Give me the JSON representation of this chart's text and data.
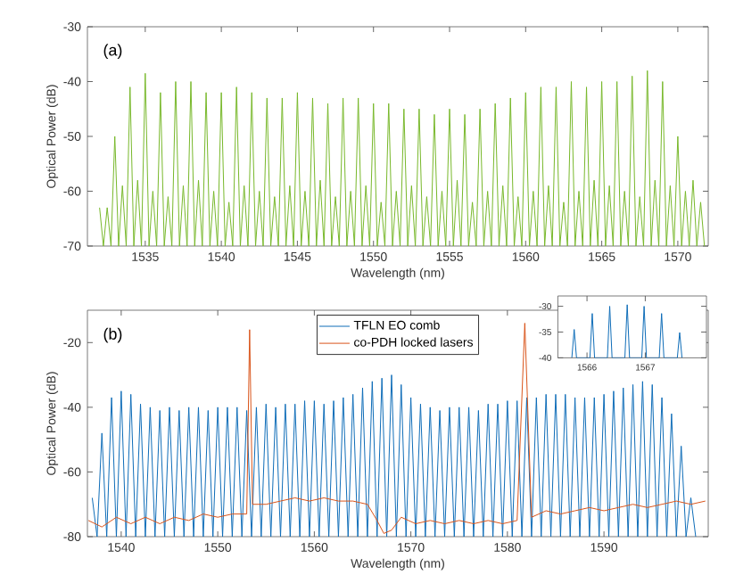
{
  "chart_data": [
    {
      "type": "line",
      "xlabel": "Wavelength (nm)",
      "ylabel": "Optical Power (dB)",
      "annotations": [
        "(a)"
      ],
      "xlim": [
        1531.2,
        1572
      ],
      "ylim": [
        -70,
        -30
      ],
      "xticks": [
        1535,
        1540,
        1545,
        1550,
        1555,
        1560,
        1565,
        1570
      ],
      "yticks": [
        -70,
        -60,
        -50,
        -40,
        -30
      ],
      "series": [
        {
          "color": "#77b82a",
          "x": [
            1532,
            1532.25,
            1532.5,
            1532.75,
            1533,
            1533.25,
            1533.5,
            1533.75,
            1534,
            1534.25,
            1534.5,
            1534.75,
            1535,
            1535.25,
            1535.5,
            1535.75,
            1536,
            1536.25,
            1536.5,
            1536.75,
            1537,
            1537.25,
            1537.5,
            1537.75,
            1538,
            1538.25,
            1538.5,
            1538.75,
            1539,
            1539.25,
            1539.5,
            1539.75,
            1540,
            1540.25,
            1540.5,
            1540.75,
            1541,
            1541.25,
            1541.5,
            1541.75,
            1542,
            1542.25,
            1542.5,
            1542.75,
            1543,
            1543.25,
            1543.5,
            1543.75,
            1544,
            1544.25,
            1544.5,
            1544.75,
            1545,
            1545.25,
            1545.5,
            1545.75,
            1546,
            1546.25,
            1546.5,
            1546.75,
            1547,
            1547.25,
            1547.5,
            1547.75,
            1548,
            1548.25,
            1548.5,
            1548.75,
            1549,
            1549.25,
            1549.5,
            1549.75,
            1550,
            1550.25,
            1550.5,
            1550.75,
            1551,
            1551.25,
            1551.5,
            1551.75,
            1552,
            1552.25,
            1552.5,
            1552.75,
            1553,
            1553.25,
            1553.5,
            1553.75,
            1554,
            1554.25,
            1554.5,
            1554.75,
            1555,
            1555.25,
            1555.5,
            1555.75,
            1556,
            1556.25,
            1556.5,
            1556.75,
            1557,
            1557.25,
            1557.5,
            1557.75,
            1558,
            1558.25,
            1558.5,
            1558.75,
            1559,
            1559.25,
            1559.5,
            1559.75,
            1560,
            1560.25,
            1560.5,
            1560.75,
            1561,
            1561.25,
            1561.5,
            1561.75,
            1562,
            1562.25,
            1562.5,
            1562.75,
            1563,
            1563.25,
            1563.5,
            1563.75,
            1564,
            1564.25,
            1564.5,
            1564.75,
            1565,
            1565.25,
            1565.5,
            1565.75,
            1566,
            1566.25,
            1566.5,
            1566.75,
            1567,
            1567.25,
            1567.5,
            1567.75,
            1568,
            1568.25,
            1568.5,
            1568.75,
            1569,
            1569.25,
            1569.5,
            1569.75,
            1570,
            1570.25,
            1570.5,
            1570.75,
            1571,
            1571.25,
            1571.5,
            1571.75
          ],
          "values": [
            -63,
            -70,
            -63,
            -70,
            -50,
            -70,
            -59,
            -70,
            -41,
            -70,
            -58,
            -70,
            -38.5,
            -70,
            -60,
            -70,
            -42,
            -70,
            -61,
            -70,
            -40,
            -70,
            -59,
            -70,
            -40,
            -70,
            -58,
            -70,
            -42,
            -70,
            -60,
            -70,
            -42,
            -70,
            -62,
            -70,
            -41,
            -70,
            -59,
            -70,
            -42,
            -70,
            -60,
            -70,
            -43,
            -70,
            -61,
            -70,
            -43,
            -70,
            -59,
            -70,
            -42,
            -70,
            -60,
            -70,
            -43,
            -70,
            -58,
            -70,
            -44,
            -70,
            -61,
            -70,
            -43,
            -70,
            -60,
            -70,
            -43,
            -70,
            -59,
            -70,
            -44,
            -70,
            -62,
            -70,
            -44,
            -70,
            -60,
            -70,
            -45,
            -70,
            -59,
            -70,
            -45,
            -70,
            -61,
            -70,
            -46,
            -70,
            -60,
            -70,
            -45,
            -70,
            -58,
            -70,
            -46,
            -70,
            -62,
            -70,
            -45,
            -70,
            -60,
            -70,
            -44,
            -70,
            -59,
            -70,
            -43,
            -70,
            -61,
            -70,
            -42,
            -70,
            -60,
            -70,
            -41,
            -70,
            -59,
            -70,
            -41,
            -70,
            -62,
            -70,
            -40,
            -70,
            -60,
            -70,
            -41,
            -70,
            -58,
            -70,
            -40,
            -70,
            -59,
            -70,
            -40,
            -70,
            -60,
            -70,
            -39,
            -70,
            -61,
            -70,
            -38,
            -70,
            -58,
            -70,
            -40,
            -70,
            -59,
            -70,
            -50,
            -70,
            -60,
            -70,
            -58,
            -70,
            -62,
            -70
          ]
        }
      ]
    },
    {
      "type": "line",
      "xlabel": "Wavelength (nm)",
      "ylabel": "Optical Power (dB)",
      "annotations": [
        "(b)"
      ],
      "xlim": [
        1536.5,
        1600.8
      ],
      "ylim": [
        -80,
        -10
      ],
      "xticks": [
        1540,
        1550,
        1560,
        1570,
        1580,
        1590
      ],
      "yticks": [
        -80,
        -60,
        -40,
        -20
      ],
      "legend": "top",
      "series": [
        {
          "name": "TFLN EO comb",
          "color": "#0e6cb8",
          "x": [
            1537,
            1537.5,
            1538,
            1538.5,
            1539,
            1539.5,
            1540,
            1540.5,
            1541,
            1541.5,
            1542,
            1542.5,
            1543,
            1543.5,
            1544,
            1544.5,
            1545,
            1545.5,
            1546,
            1546.5,
            1547,
            1547.5,
            1548,
            1548.5,
            1549,
            1549.5,
            1550,
            1550.5,
            1551,
            1551.5,
            1552,
            1552.5,
            1553,
            1553.5,
            1554,
            1554.5,
            1555,
            1555.5,
            1556,
            1556.5,
            1557,
            1557.5,
            1558,
            1558.5,
            1559,
            1559.5,
            1560,
            1560.5,
            1561,
            1561.5,
            1562,
            1562.5,
            1563,
            1563.5,
            1564,
            1564.5,
            1565,
            1565.5,
            1566,
            1566.5,
            1567,
            1567.5,
            1568,
            1568.5,
            1569,
            1569.5,
            1570,
            1570.5,
            1571,
            1571.5,
            1572,
            1572.5,
            1573,
            1573.5,
            1574,
            1574.5,
            1575,
            1575.5,
            1576,
            1576.5,
            1577,
            1577.5,
            1578,
            1578.5,
            1579,
            1579.5,
            1580,
            1580.5,
            1581,
            1581.5,
            1582,
            1582.5,
            1583,
            1583.5,
            1584,
            1584.5,
            1585,
            1585.5,
            1586,
            1586.5,
            1587,
            1587.5,
            1588,
            1588.5,
            1589,
            1589.5,
            1590,
            1590.5,
            1591,
            1591.5,
            1592,
            1592.5,
            1593,
            1593.5,
            1594,
            1594.5,
            1595,
            1595.5,
            1596,
            1596.5,
            1597,
            1597.5,
            1598,
            1598.5,
            1599,
            1599.5
          ],
          "values": [
            -68,
            -80,
            -48,
            -80,
            -37,
            -80,
            -35,
            -80,
            -36,
            -80,
            -39,
            -80,
            -40,
            -80,
            -41,
            -80,
            -40,
            -80,
            -41,
            -80,
            -40,
            -80,
            -40,
            -80,
            -41,
            -80,
            -40,
            -80,
            -40,
            -80,
            -40,
            -80,
            -41,
            -80,
            -40,
            -80,
            -39,
            -80,
            -40,
            -80,
            -39,
            -80,
            -39,
            -80,
            -38,
            -80,
            -38,
            -80,
            -39,
            -80,
            -38,
            -80,
            -37,
            -80,
            -36,
            -80,
            -34,
            -80,
            -32,
            -80,
            -31,
            -80,
            -30,
            -80,
            -33,
            -80,
            -37,
            -80,
            -39,
            -80,
            -40,
            -80,
            -41,
            -80,
            -40,
            -80,
            -40,
            -80,
            -40,
            -80,
            -41,
            -80,
            -39,
            -80,
            -39,
            -80,
            -38,
            -80,
            -38,
            -80,
            -37,
            -80,
            -37,
            -80,
            -36,
            -80,
            -36,
            -80,
            -36,
            -80,
            -37,
            -80,
            -37,
            -80,
            -37,
            -80,
            -36,
            -80,
            -35,
            -80,
            -34,
            -80,
            -33,
            -80,
            -32,
            -80,
            -33,
            -80,
            -37,
            -80,
            -42,
            -80,
            -52,
            -80,
            -68,
            -80
          ]
        },
        {
          "name": "co-PDH locked lasers",
          "color": "#d95319",
          "x": [
            1536.6,
            1538,
            1539.5,
            1541,
            1542.5,
            1544,
            1545.5,
            1547,
            1548.5,
            1550,
            1551.5,
            1553,
            1553.3,
            1553.6,
            1555,
            1556.5,
            1558,
            1559.5,
            1561,
            1562.5,
            1564,
            1565.5,
            1566.5,
            1567.2,
            1568,
            1569,
            1570.5,
            1572,
            1573.5,
            1575,
            1576.5,
            1578,
            1579.5,
            1581,
            1581.8,
            1582.5,
            1584,
            1585.5,
            1587,
            1588.5,
            1590,
            1591.5,
            1593,
            1594.5,
            1596,
            1597.5,
            1599,
            1600.5
          ],
          "values": [
            -75,
            -77,
            -74,
            -76,
            -74,
            -76,
            -74,
            -75,
            -73,
            -74,
            -73,
            -73,
            -16,
            -70,
            -70,
            -69,
            -68,
            -69,
            -68,
            -69,
            -69,
            -70,
            -75,
            -79,
            -78,
            -74,
            -76,
            -75,
            -76,
            -75,
            -76,
            -75,
            -76,
            -75,
            -14,
            -74,
            -72,
            -73,
            -72,
            -71,
            -72,
            -71,
            -70,
            -71,
            -70,
            -69,
            -70,
            -69
          ]
        }
      ]
    },
    {
      "type": "line",
      "xlim": [
        1565.5,
        1568.05
      ],
      "ylim": [
        -40,
        -28
      ],
      "xticks": [
        1566,
        1567
      ],
      "yticks": [
        -40,
        -35,
        -30
      ],
      "series": [
        {
          "color": "#0e6cb8",
          "x": [
            1565.74,
            1565.78,
            1565.82,
            1566.05,
            1566.09,
            1566.13,
            1566.35,
            1566.39,
            1566.43,
            1566.65,
            1566.69,
            1566.73,
            1566.94,
            1566.98,
            1567.02,
            1567.24,
            1567.28,
            1567.32,
            1567.55,
            1567.59,
            1567.63
          ],
          "values": [
            -40,
            -34.5,
            -40,
            -40,
            -31.4,
            -40,
            -40,
            -30,
            -40,
            -40,
            -29.7,
            -40,
            -40,
            -30,
            -40,
            -40,
            -31.4,
            -40,
            -40,
            -35.1,
            -40
          ]
        }
      ]
    }
  ]
}
